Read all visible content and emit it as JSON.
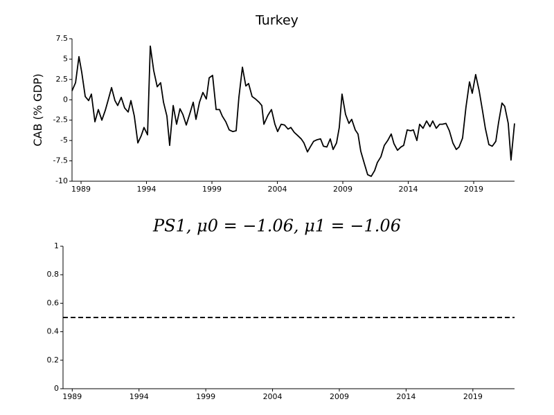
{
  "chart_data": [
    {
      "type": "line",
      "title": "Turkey",
      "ylabel": "CAB (% GDP)",
      "x": [
        1988.31,
        1988.58,
        1988.84,
        1989.05,
        1989.32,
        1989.58,
        1989.79,
        1990.06,
        1990.32,
        1990.59,
        1990.85,
        1991.06,
        1991.33,
        1991.59,
        1991.8,
        1992.07,
        1992.33,
        1992.6,
        1992.81,
        1993.07,
        1993.34,
        1993.6,
        1993.81,
        1994.08,
        1994.29,
        1994.55,
        1994.82,
        1995.08,
        1995.3,
        1995.56,
        1995.77,
        1996.04,
        1996.3,
        1996.56,
        1996.78,
        1997.04,
        1997.31,
        1997.57,
        1997.78,
        1998.05,
        1998.31,
        1998.57,
        1998.79,
        1999.05,
        1999.32,
        1999.58,
        1999.79,
        2000.06,
        2000.32,
        2000.59,
        2000.85,
        2001.06,
        2001.33,
        2001.59,
        2001.8,
        2002.07,
        2002.33,
        2002.6,
        2002.81,
        2002.97,
        2003.28,
        2003.55,
        2003.81,
        2004.02,
        2004.29,
        2004.55,
        2004.82,
        2005.03,
        2005.29,
        2005.56,
        2005.82,
        2006.03,
        2006.3,
        2006.51,
        2006.77,
        2007.04,
        2007.3,
        2007.52,
        2007.78,
        2008.04,
        2008.26,
        2008.52,
        2008.73,
        2008.94,
        2009.21,
        2009.47,
        2009.68,
        2009.95,
        2010.16,
        2010.37,
        2010.64,
        2010.9,
        2011.17,
        2011.43,
        2011.64,
        2011.91,
        2012.17,
        2012.43,
        2012.7,
        2012.91,
        2013.18,
        2013.44,
        2013.65,
        2013.92,
        2014.18,
        2014.39,
        2014.66,
        2014.87,
        2015.13,
        2015.4,
        2015.66,
        2015.87,
        2016.14,
        2016.4,
        2016.61,
        2016.88,
        2017.14,
        2017.41,
        2017.67,
        2017.88,
        2018.15,
        2018.41,
        2018.68,
        2018.89,
        2019.15,
        2019.42,
        2019.68,
        2019.89,
        2020.16,
        2020.42,
        2020.69,
        2020.9,
        2021.16,
        2021.37,
        2021.64,
        2021.85,
        2022.12
      ],
      "series": [
        {
          "color": "#000000",
          "values": [
            1.1,
            2.1,
            5.3,
            3.4,
            0.4,
            -0.1,
            0.7,
            -2.7,
            -1.2,
            -2.5,
            -1.3,
            -0.1,
            1.5,
            -0.1,
            -0.7,
            0.3,
            -1,
            -1.5,
            -0.1,
            -2,
            -5.3,
            -4.4,
            -3.4,
            -4.3,
            6.6,
            3.6,
            1.6,
            2.1,
            -0.3,
            -2,
            -5.6,
            -0.7,
            -3,
            -1.1,
            -1.8,
            -3.1,
            -1.7,
            -0.3,
            -2.4,
            -0.3,
            0.9,
            0.1,
            2.7,
            3,
            -1.2,
            -1.2,
            -2,
            -2.7,
            -3.7,
            -3.9,
            -3.8,
            0.3,
            4,
            1.7,
            2,
            0.4,
            0.1,
            -0.3,
            -0.7,
            -3,
            -1.9,
            -1.2,
            -3,
            -3.9,
            -3,
            -3.1,
            -3.6,
            -3.4,
            -4,
            -4.4,
            -4.8,
            -5.3,
            -6.4,
            -5.8,
            -5.1,
            -4.9,
            -4.8,
            -5.7,
            -5.8,
            -4.8,
            -6.1,
            -5.3,
            -3.4,
            0.7,
            -1.8,
            -2.9,
            -2.4,
            -3.7,
            -4.2,
            -6.3,
            -7.8,
            -9.2,
            -9.4,
            -8.7,
            -7.7,
            -7,
            -5.6,
            -5,
            -4.2,
            -5.4,
            -6.2,
            -5.8,
            -5.6,
            -3.7,
            -3.8,
            -3.7,
            -5,
            -3,
            -3.5,
            -2.6,
            -3.3,
            -2.6,
            -3.5,
            -3,
            -3,
            -2.9,
            -3.8,
            -5.3,
            -6.1,
            -5.8,
            -4.7,
            -0.9,
            2.2,
            0.8,
            3.1,
            1.1,
            -1.4,
            -3.5,
            -5.5,
            -5.7,
            -5.1,
            -2.8,
            -0.4,
            -0.8,
            -2.9,
            -7.4,
            -2.9
          ]
        }
      ],
      "xlim": [
        1988.31,
        2022.12
      ],
      "xticks": [
        1989,
        1994,
        1999,
        2004,
        2009,
        2014,
        2019
      ],
      "ylim": [
        -10,
        7.5
      ],
      "yticks": [
        7.5,
        5,
        2.5,
        0,
        -2.5,
        -5,
        -7.5,
        -10
      ]
    },
    {
      "type": "line",
      "title": "PS1, μ0 = −1.06, μ1 = −1.06",
      "x": [
        1988.31,
        2022.12
      ],
      "series": [
        {
          "color": "#000000",
          "linestyle": "dashed",
          "values": [
            0.5,
            0.5
          ]
        }
      ],
      "xlim": [
        1988.31,
        2022.12
      ],
      "xticks": [
        1989,
        1994,
        1999,
        2004,
        2009,
        2014,
        2019
      ],
      "ylim": [
        0,
        1
      ],
      "yticks": [
        0,
        0.2,
        0.4,
        0.6,
        0.8,
        1
      ]
    }
  ]
}
